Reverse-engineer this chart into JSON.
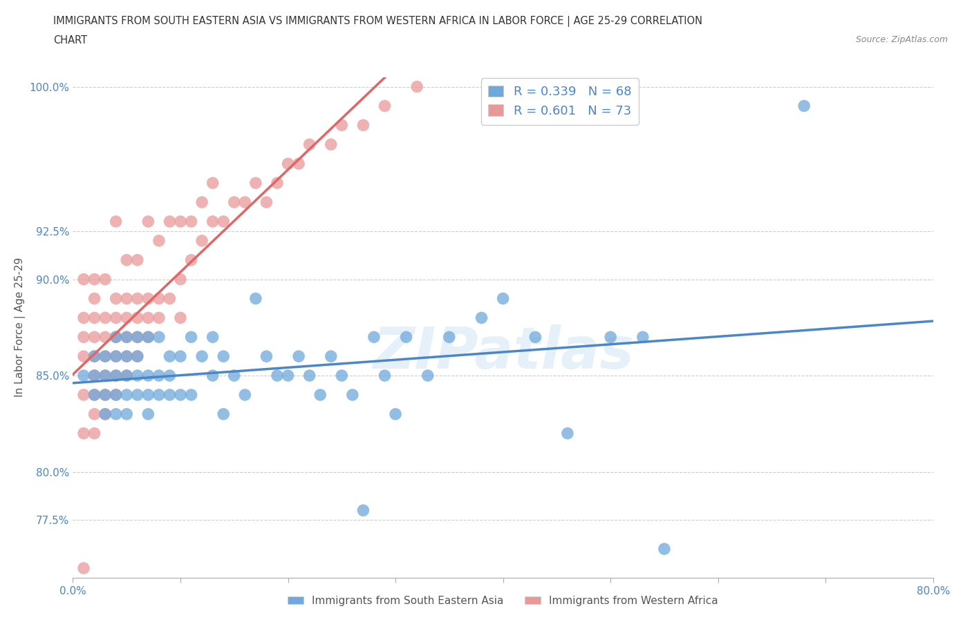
{
  "title_line1": "IMMIGRANTS FROM SOUTH EASTERN ASIA VS IMMIGRANTS FROM WESTERN AFRICA IN LABOR FORCE | AGE 25-29 CORRELATION",
  "title_line2": "CHART",
  "source": "Source: ZipAtlas.com",
  "ylabel": "In Labor Force | Age 25-29",
  "xlim": [
    0.0,
    0.8
  ],
  "ylim": [
    0.745,
    1.005
  ],
  "R_blue": 0.339,
  "N_blue": 68,
  "R_pink": 0.601,
  "N_pink": 73,
  "blue_color": "#6fa8dc",
  "pink_color": "#ea9999",
  "blue_line_color": "#4a86c8",
  "pink_line_color": "#e06666",
  "legend_label_blue": "Immigrants from South Eastern Asia",
  "legend_label_pink": "Immigrants from Western Africa",
  "watermark": "ZIPatlas",
  "blue_scatter_x": [
    0.01,
    0.02,
    0.02,
    0.02,
    0.03,
    0.03,
    0.03,
    0.03,
    0.04,
    0.04,
    0.04,
    0.04,
    0.04,
    0.05,
    0.05,
    0.05,
    0.05,
    0.05,
    0.06,
    0.06,
    0.06,
    0.06,
    0.07,
    0.07,
    0.07,
    0.07,
    0.08,
    0.08,
    0.08,
    0.09,
    0.09,
    0.09,
    0.1,
    0.1,
    0.11,
    0.11,
    0.12,
    0.13,
    0.13,
    0.14,
    0.14,
    0.15,
    0.16,
    0.17,
    0.18,
    0.19,
    0.2,
    0.21,
    0.22,
    0.23,
    0.24,
    0.25,
    0.26,
    0.27,
    0.28,
    0.29,
    0.3,
    0.31,
    0.33,
    0.35,
    0.38,
    0.4,
    0.43,
    0.46,
    0.5,
    0.53,
    0.55,
    0.68
  ],
  "blue_scatter_y": [
    0.85,
    0.84,
    0.85,
    0.86,
    0.83,
    0.84,
    0.85,
    0.86,
    0.83,
    0.84,
    0.85,
    0.86,
    0.87,
    0.83,
    0.84,
    0.85,
    0.86,
    0.87,
    0.84,
    0.85,
    0.86,
    0.87,
    0.83,
    0.84,
    0.85,
    0.87,
    0.84,
    0.85,
    0.87,
    0.84,
    0.85,
    0.86,
    0.84,
    0.86,
    0.84,
    0.87,
    0.86,
    0.85,
    0.87,
    0.83,
    0.86,
    0.85,
    0.84,
    0.89,
    0.86,
    0.85,
    0.85,
    0.86,
    0.85,
    0.84,
    0.86,
    0.85,
    0.84,
    0.78,
    0.87,
    0.85,
    0.83,
    0.87,
    0.85,
    0.87,
    0.88,
    0.89,
    0.87,
    0.82,
    0.87,
    0.87,
    0.76,
    0.99
  ],
  "pink_scatter_x": [
    0.01,
    0.01,
    0.01,
    0.01,
    0.01,
    0.01,
    0.01,
    0.02,
    0.02,
    0.02,
    0.02,
    0.02,
    0.02,
    0.02,
    0.02,
    0.02,
    0.03,
    0.03,
    0.03,
    0.03,
    0.03,
    0.03,
    0.03,
    0.04,
    0.04,
    0.04,
    0.04,
    0.04,
    0.04,
    0.04,
    0.05,
    0.05,
    0.05,
    0.05,
    0.05,
    0.05,
    0.06,
    0.06,
    0.06,
    0.06,
    0.06,
    0.07,
    0.07,
    0.07,
    0.07,
    0.08,
    0.08,
    0.08,
    0.09,
    0.09,
    0.1,
    0.1,
    0.1,
    0.11,
    0.11,
    0.12,
    0.12,
    0.13,
    0.13,
    0.14,
    0.15,
    0.16,
    0.17,
    0.18,
    0.19,
    0.2,
    0.21,
    0.22,
    0.24,
    0.25,
    0.27,
    0.29,
    0.32
  ],
  "pink_scatter_y": [
    0.75,
    0.82,
    0.84,
    0.86,
    0.87,
    0.88,
    0.9,
    0.82,
    0.83,
    0.84,
    0.85,
    0.86,
    0.87,
    0.88,
    0.89,
    0.9,
    0.83,
    0.84,
    0.85,
    0.86,
    0.87,
    0.88,
    0.9,
    0.84,
    0.85,
    0.86,
    0.87,
    0.88,
    0.89,
    0.93,
    0.85,
    0.86,
    0.87,
    0.88,
    0.89,
    0.91,
    0.86,
    0.87,
    0.88,
    0.89,
    0.91,
    0.87,
    0.88,
    0.89,
    0.93,
    0.88,
    0.89,
    0.92,
    0.89,
    0.93,
    0.88,
    0.9,
    0.93,
    0.91,
    0.93,
    0.92,
    0.94,
    0.93,
    0.95,
    0.93,
    0.94,
    0.94,
    0.95,
    0.94,
    0.95,
    0.96,
    0.96,
    0.97,
    0.97,
    0.98,
    0.98,
    0.99,
    1.0
  ],
  "ytick_vals": [
    0.775,
    0.8,
    0.85,
    0.9,
    0.925,
    1.0
  ],
  "ytick_labels": [
    "77.5%",
    "80.0%",
    "85.0%",
    "90.0%",
    "92.5%",
    "100.0%"
  ],
  "xtick_vals": [
    0.0,
    0.1,
    0.2,
    0.3,
    0.4,
    0.5,
    0.6,
    0.7,
    0.8
  ],
  "xtick_shown": [
    0.0,
    0.8
  ],
  "xtick_shown_labels": [
    "0.0%",
    "80.0%"
  ]
}
